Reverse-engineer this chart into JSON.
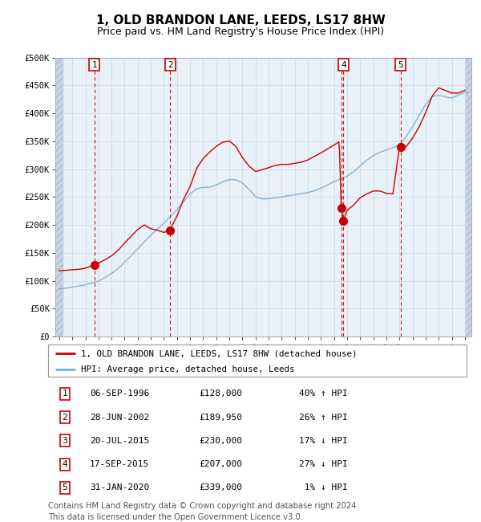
{
  "title": "1, OLD BRANDON LANE, LEEDS, LS17 8HW",
  "subtitle": "Price paid vs. HM Land Registry's House Price Index (HPI)",
  "ylim": [
    0,
    500000
  ],
  "yticks": [
    0,
    50000,
    100000,
    150000,
    200000,
    250000,
    300000,
    350000,
    400000,
    450000,
    500000
  ],
  "ytick_labels": [
    "£0",
    "£50K",
    "£100K",
    "£150K",
    "£200K",
    "£250K",
    "£300K",
    "£350K",
    "£400K",
    "£450K",
    "£500K"
  ],
  "transactions": [
    {
      "num": 1,
      "date_label": "06-SEP-1996",
      "price": 128000,
      "pct": "40%",
      "dir": "↑",
      "year": 1996.68
    },
    {
      "num": 2,
      "date_label": "28-JUN-2002",
      "price": 189950,
      "pct": "26%",
      "dir": "↑",
      "year": 2002.49
    },
    {
      "num": 3,
      "date_label": "20-JUL-2015",
      "price": 230000,
      "pct": "17%",
      "dir": "↓",
      "year": 2015.55
    },
    {
      "num": 4,
      "date_label": "17-SEP-2015",
      "price": 207000,
      "pct": "27%",
      "dir": "↓",
      "year": 2015.72
    },
    {
      "num": 5,
      "date_label": "31-JAN-2020",
      "price": 339000,
      "pct": "1%",
      "dir": "↓",
      "year": 2020.08
    }
  ],
  "legend_line1": "1, OLD BRANDON LANE, LEEDS, LS17 8HW (detached house)",
  "legend_line2": "HPI: Average price, detached house, Leeds",
  "footer": "Contains HM Land Registry data © Crown copyright and database right 2024.\nThis data is licensed under the Open Government Licence v3.0.",
  "price_line_color": "#cc0000",
  "hpi_line_color": "#7bafd4",
  "plot_bg": "#e8f0f8",
  "vline_color": "#cc0000",
  "grid_color": "#c8d4e0",
  "marker_color": "#cc0000",
  "box_edge_color": "#cc0000",
  "title_fontsize": 11,
  "subtitle_fontsize": 9,
  "tick_fontsize": 7.5,
  "xmin": 1994,
  "xmax": 2025.5,
  "hpi_data_t": [
    1994.0,
    1994.5,
    1995.0,
    1995.5,
    1996.0,
    1996.5,
    1997.0,
    1997.5,
    1998.0,
    1998.5,
    1999.0,
    1999.5,
    2000.0,
    2000.5,
    2001.0,
    2001.5,
    2002.0,
    2002.5,
    2003.0,
    2003.5,
    2004.0,
    2004.5,
    2005.0,
    2005.5,
    2006.0,
    2006.5,
    2007.0,
    2007.5,
    2008.0,
    2008.5,
    2009.0,
    2009.5,
    2010.0,
    2010.5,
    2011.0,
    2011.5,
    2012.0,
    2012.5,
    2013.0,
    2013.5,
    2014.0,
    2014.5,
    2015.0,
    2015.5,
    2016.0,
    2016.5,
    2017.0,
    2017.5,
    2018.0,
    2018.5,
    2019.0,
    2019.5,
    2020.0,
    2020.5,
    2021.0,
    2021.5,
    2022.0,
    2022.5,
    2023.0,
    2023.5,
    2024.0,
    2024.5,
    2025.0
  ],
  "hpi_data_v": [
    85000,
    87000,
    89000,
    91000,
    93000,
    96000,
    100000,
    106000,
    113000,
    122000,
    133000,
    145000,
    158000,
    170000,
    182000,
    193000,
    204000,
    216000,
    228000,
    242000,
    256000,
    265000,
    268000,
    268000,
    272000,
    278000,
    282000,
    282000,
    276000,
    265000,
    252000,
    248000,
    248000,
    250000,
    252000,
    254000,
    256000,
    258000,
    260000,
    263000,
    268000,
    274000,
    280000,
    285000,
    290000,
    298000,
    308000,
    318000,
    326000,
    332000,
    336000,
    340000,
    345000,
    360000,
    378000,
    398000,
    418000,
    432000,
    435000,
    432000,
    430000,
    435000,
    440000
  ],
  "red_data_t": [
    1994.0,
    1994.5,
    1995.0,
    1995.5,
    1996.0,
    1996.5,
    1996.68,
    1997.0,
    1997.5,
    1998.0,
    1998.5,
    1999.0,
    1999.5,
    2000.0,
    2000.5,
    2001.0,
    2001.5,
    2002.0,
    2002.49,
    2002.5,
    2003.0,
    2003.5,
    2004.0,
    2004.5,
    2005.0,
    2005.5,
    2006.0,
    2006.5,
    2007.0,
    2007.5,
    2008.0,
    2008.5,
    2009.0,
    2009.5,
    2010.0,
    2010.5,
    2011.0,
    2011.5,
    2012.0,
    2012.5,
    2013.0,
    2013.5,
    2014.0,
    2014.5,
    2015.0,
    2015.4,
    2015.55,
    2015.72,
    2016.0,
    2016.5,
    2017.0,
    2017.5,
    2018.0,
    2018.5,
    2019.0,
    2019.5,
    2020.0,
    2020.08,
    2020.5,
    2021.0,
    2021.5,
    2022.0,
    2022.5,
    2023.0,
    2023.5,
    2024.0,
    2024.5,
    2025.0
  ],
  "red_data_v": [
    118000,
    119000,
    120000,
    121000,
    123000,
    127000,
    128000,
    132000,
    138000,
    145000,
    155000,
    168000,
    180000,
    192000,
    200000,
    193000,
    190000,
    186000,
    189950,
    192000,
    215000,
    245000,
    268000,
    300000,
    318000,
    330000,
    340000,
    348000,
    350000,
    340000,
    320000,
    305000,
    295000,
    298000,
    302000,
    306000,
    308000,
    308000,
    310000,
    312000,
    316000,
    322000,
    328000,
    335000,
    342000,
    348000,
    230000,
    207000,
    225000,
    235000,
    248000,
    255000,
    260000,
    260000,
    256000,
    255000,
    339000,
    339000,
    340000,
    355000,
    375000,
    400000,
    430000,
    445000,
    440000,
    435000,
    435000,
    440000
  ]
}
